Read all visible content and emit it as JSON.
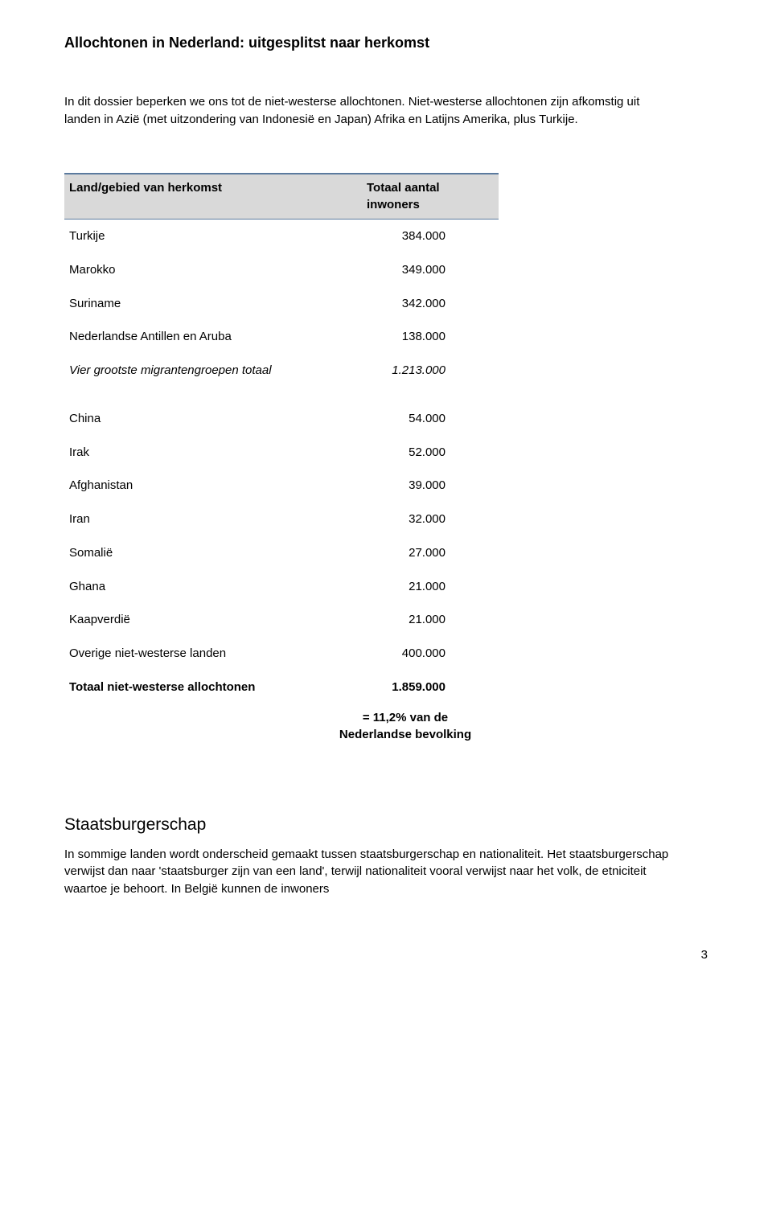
{
  "title": "Allochtonen in Nederland: uitgesplitst naar herkomst",
  "intro": "In dit dossier beperken we ons tot de niet-westerse allochtonen. Niet-westerse allochtonen zijn afkomstig uit landen in Azië (met uitzondering van Indonesië en Japan) Afrika en Latijns Amerika, plus Turkije.",
  "table": {
    "header_left": "Land/gebied van herkomst",
    "header_right": "Totaal aantal inwoners",
    "rows1": [
      {
        "label": "Turkije",
        "value": "384.000"
      },
      {
        "label": "Marokko",
        "value": "349.000"
      },
      {
        "label": "Suriname",
        "value": "342.000"
      },
      {
        "label": "Nederlandse Antillen en Aruba",
        "value": "138.000"
      }
    ],
    "subtotal": {
      "label": "Vier grootste migrantengroepen totaal",
      "value": "1.213.000"
    },
    "rows2": [
      {
        "label": "China",
        "value": "54.000"
      },
      {
        "label": "Irak",
        "value": "52.000"
      },
      {
        "label": "Afghanistan",
        "value": "39.000"
      },
      {
        "label": "Iran",
        "value": "32.000"
      },
      {
        "label": "Somalië",
        "value": "27.000"
      },
      {
        "label": "Ghana",
        "value": "21.000"
      },
      {
        "label": "Kaapverdië",
        "value": "21.000"
      },
      {
        "label": "Overige niet-westerse landen",
        "value": "400.000"
      }
    ],
    "total": {
      "label": "Totaal niet-westerse allochtonen",
      "value": "1.859.000"
    },
    "footnote": "= 11,2% van de Nederlandse bevolking"
  },
  "section": {
    "heading": "Staatsburgerschap",
    "body": "In sommige landen wordt onderscheid gemaakt tussen staatsburgerschap en nationaliteit. Het staatsburgerschap verwijst dan naar 'staatsburger zijn van een land', terwijl nationaliteit vooral verwijst naar het volk, de etniciteit waartoe je behoort. In België kunnen de inwoners"
  },
  "page_number": "3"
}
